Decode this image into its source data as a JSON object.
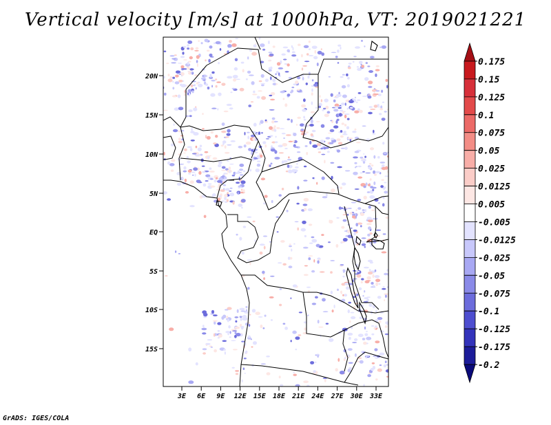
{
  "title": "Vertical velocity [m/s] at 1000hPa, VT: 2019021221",
  "footer": "GrADS: IGES/COLA",
  "map": {
    "lat_labels": [
      "20N",
      "15N",
      "10N",
      "5N",
      "EQ",
      "5S",
      "10S",
      "15S"
    ],
    "lon_labels": [
      "3E",
      "6E",
      "9E",
      "12E",
      "15E",
      "18E",
      "21E",
      "24E",
      "27E",
      "30E",
      "33E"
    ]
  },
  "colorbar": {
    "levels": [
      "0.175",
      "0.15",
      "0.125",
      "0.1",
      "0.075",
      "0.05",
      "0.025",
      "0.0125",
      "0.005",
      "-0.005",
      "-0.0125",
      "-0.025",
      "-0.05",
      "-0.075",
      "-0.1",
      "-0.125",
      "-0.175",
      "-0.2"
    ],
    "colors": [
      "#a50f15",
      "#c8191e",
      "#d7303a",
      "#e34a4a",
      "#ec6a67",
      "#f38d86",
      "#f8aea8",
      "#fbcdc8",
      "#fde7e4",
      "#ffffff",
      "#e3e3ff",
      "#c8c8fb",
      "#a8a8f3",
      "#8a8ae8",
      "#6c6cdc",
      "#4e4ed0",
      "#3333bb",
      "#1c1c9a",
      "#0a0a7a"
    ]
  }
}
